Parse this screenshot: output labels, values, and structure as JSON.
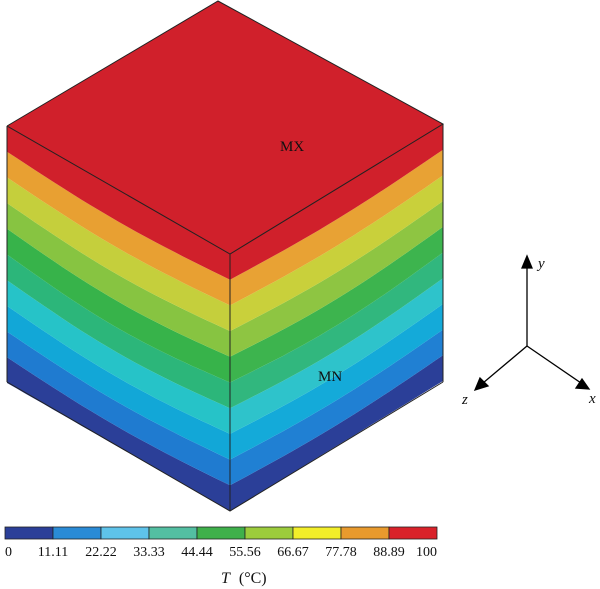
{
  "labels": {
    "max_marker": "MX",
    "min_marker": "MN"
  },
  "axes": {
    "x": "x",
    "y": "y",
    "z": "z"
  },
  "colorbar": {
    "quantity_symbol": "T",
    "unit": "(°C)",
    "ticks": [
      "0",
      "11.11",
      "22.22",
      "33.33",
      "44.44",
      "55.56",
      "66.67",
      "77.78",
      "88.89",
      "100"
    ],
    "colors": [
      "#2b3f98",
      "#2a8bd6",
      "#5ec3ea",
      "#53bfa2",
      "#3fb04b",
      "#9ccc3c",
      "#f2ee2a",
      "#e89a2d",
      "#d9222a"
    ]
  },
  "bands": {
    "left_face": [
      "#2b3f98",
      "#1f7bd0",
      "#12a7d7",
      "#26c3c8",
      "#2cb67a",
      "#37b34a",
      "#87c441",
      "#c5cf3c",
      "#e8a032",
      "#d0202b"
    ],
    "right_face": [
      "#2b3f98",
      "#2080d3",
      "#14aad9",
      "#2ec3cb",
      "#31b77e",
      "#3db44e",
      "#8ec542",
      "#c9d03b",
      "#e8a234",
      "#d0202b"
    ],
    "top_face": "#d0202b"
  }
}
